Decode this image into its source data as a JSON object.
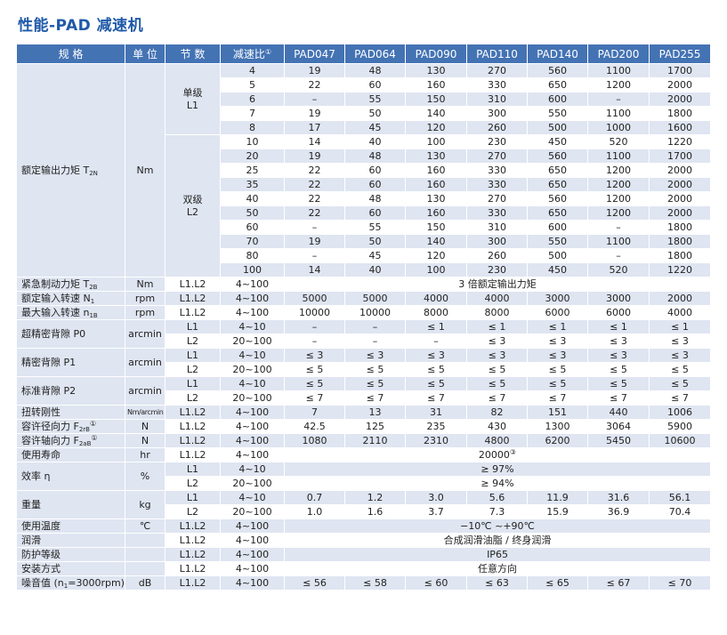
{
  "title": "性能-PAD 减速机",
  "header": {
    "spec": "规 格",
    "unit": "单 位",
    "stage": "节 数",
    "ratio": "减速比",
    "ratio_sup": "①",
    "models": [
      "PAD047",
      "PAD064",
      "PAD090",
      "PAD110",
      "PAD140",
      "PAD200",
      "PAD255"
    ]
  },
  "torque": {
    "label": "额定输出力矩 T",
    "label_sub": "2N",
    "unit": "Nm",
    "single_stage": "单级",
    "single_code": "L1",
    "double_stage": "双级",
    "double_code": "L2",
    "rows": [
      [
        "4",
        "19",
        "48",
        "130",
        "270",
        "560",
        "1100",
        "1700"
      ],
      [
        "5",
        "22",
        "60",
        "160",
        "330",
        "650",
        "1200",
        "2000"
      ],
      [
        "6",
        "–",
        "55",
        "150",
        "310",
        "600",
        "–",
        "2000"
      ],
      [
        "7",
        "19",
        "50",
        "140",
        "300",
        "550",
        "1100",
        "1800"
      ],
      [
        "8",
        "17",
        "45",
        "120",
        "260",
        "500",
        "1000",
        "1600"
      ],
      [
        "10",
        "14",
        "40",
        "100",
        "230",
        "450",
        "520",
        "1220"
      ],
      [
        "20",
        "19",
        "48",
        "130",
        "270",
        "560",
        "1100",
        "1700"
      ],
      [
        "25",
        "22",
        "60",
        "160",
        "330",
        "650",
        "1200",
        "2000"
      ],
      [
        "35",
        "22",
        "60",
        "160",
        "330",
        "650",
        "1200",
        "2000"
      ],
      [
        "40",
        "22",
        "48",
        "130",
        "270",
        "560",
        "1200",
        "2000"
      ],
      [
        "50",
        "22",
        "60",
        "160",
        "330",
        "650",
        "1200",
        "2000"
      ],
      [
        "60",
        "–",
        "55",
        "150",
        "310",
        "600",
        "–",
        "1800"
      ],
      [
        "70",
        "19",
        "50",
        "140",
        "300",
        "550",
        "1100",
        "1800"
      ],
      [
        "80",
        "–",
        "45",
        "120",
        "260",
        "500",
        "–",
        "1800"
      ],
      [
        "100",
        "14",
        "40",
        "100",
        "230",
        "450",
        "520",
        "1220"
      ]
    ]
  },
  "emergency": {
    "label": "紧急制动力矩 T",
    "label_sub": "2B",
    "unit": "Nm",
    "stage": "L1.L2",
    "ratio": "4~100",
    "value": "3 倍额定输出力矩"
  },
  "rated_speed": {
    "label": "额定输入转速 N",
    "label_sub": "1",
    "unit": "rpm",
    "stage": "L1.L2",
    "ratio": "4~100",
    "values": [
      "5000",
      "5000",
      "4000",
      "4000",
      "3000",
      "3000",
      "2000"
    ]
  },
  "max_speed": {
    "label": "最大输入转速 n",
    "label_sub": "1B",
    "unit": "rpm",
    "stage": "L1.L2",
    "ratio": "4~100",
    "values": [
      "10000",
      "10000",
      "8000",
      "8000",
      "6000",
      "6000",
      "4000"
    ]
  },
  "backlash_p0": {
    "label": "超精密背隙 P0",
    "unit": "arcmin",
    "rows": [
      {
        "stage": "L1",
        "ratio": "4~10",
        "values": [
          "–",
          "–",
          "≤ 1",
          "≤ 1",
          "≤ 1",
          "≤ 1",
          "≤ 1"
        ]
      },
      {
        "stage": "L2",
        "ratio": "20~100",
        "values": [
          "–",
          "–",
          "–",
          "≤ 3",
          "≤ 3",
          "≤ 3",
          "≤ 3"
        ]
      }
    ]
  },
  "backlash_p1": {
    "label": "精密背隙 P1",
    "unit": "arcmin",
    "rows": [
      {
        "stage": "L1",
        "ratio": "4~10",
        "values": [
          "≤ 3",
          "≤ 3",
          "≤ 3",
          "≤ 3",
          "≤ 3",
          "≤ 3",
          "≤ 3"
        ]
      },
      {
        "stage": "L2",
        "ratio": "20~100",
        "values": [
          "≤ 5",
          "≤ 5",
          "≤ 5",
          "≤ 5",
          "≤ 5",
          "≤ 5",
          "≤ 5"
        ]
      }
    ]
  },
  "backlash_p2": {
    "label": "标准背隙 P2",
    "unit": "arcmin",
    "rows": [
      {
        "stage": "L1",
        "ratio": "4~10",
        "values": [
          "≤ 5",
          "≤ 5",
          "≤ 5",
          "≤ 5",
          "≤ 5",
          "≤ 5",
          "≤ 5"
        ]
      },
      {
        "stage": "L2",
        "ratio": "20~100",
        "values": [
          "≤ 7",
          "≤ 7",
          "≤ 7",
          "≤ 7",
          "≤ 7",
          "≤ 7",
          "≤ 7"
        ]
      }
    ]
  },
  "stiffness": {
    "label": "扭转刚性",
    "unit": "Nm/arcmin",
    "stage": "L1.L2",
    "ratio": "4~100",
    "values": [
      "7",
      "13",
      "31",
      "82",
      "151",
      "440",
      "1006"
    ]
  },
  "radial_force": {
    "label": "容许径向力 F",
    "label_sub": "2rB",
    "label_sup": "①",
    "unit": "N",
    "stage": "L1.L2",
    "ratio": "4~100",
    "values": [
      "42.5",
      "125",
      "235",
      "430",
      "1300",
      "3064",
      "5900"
    ]
  },
  "axial_force": {
    "label": "容许轴向力 F",
    "label_sub": "2aB",
    "label_sup": "①",
    "unit": "N",
    "stage": "L1.L2",
    "ratio": "4~100",
    "values": [
      "1080",
      "2110",
      "2310",
      "4800",
      "6200",
      "5450",
      "10600"
    ]
  },
  "life": {
    "label": "使用寿命",
    "unit": "hr",
    "stage": "L1.L2",
    "ratio": "4~100",
    "value": "20000",
    "value_sup": "③"
  },
  "efficiency": {
    "label": "效率 η",
    "unit": "%",
    "rows": [
      {
        "stage": "L1",
        "ratio": "4~10",
        "value": "≥ 97%"
      },
      {
        "stage": "L2",
        "ratio": "20~100",
        "value": "≥ 94%"
      }
    ]
  },
  "weight": {
    "label": "重量",
    "unit": "kg",
    "rows": [
      {
        "stage": "L1",
        "ratio": "4~10",
        "values": [
          "0.7",
          "1.2",
          "3.0",
          "5.6",
          "11.9",
          "31.6",
          "56.1"
        ]
      },
      {
        "stage": "L2",
        "ratio": "20~100",
        "values": [
          "1.0",
          "1.6",
          "3.7",
          "7.3",
          "15.9",
          "36.9",
          "70.4"
        ]
      }
    ]
  },
  "temperature": {
    "label": "使用温度",
    "unit": "℃",
    "stage": "L1.L2",
    "ratio": "4~100",
    "value": "−10℃ ~+90℃"
  },
  "lubrication": {
    "label": "润滑",
    "unit": "",
    "stage": "L1.L2",
    "ratio": "4~100",
    "value": "合成润滑油脂 / 终身润滑"
  },
  "protection": {
    "label": "防护等级",
    "unit": "",
    "stage": "L1.L2",
    "ratio": "4~100",
    "value": "IP65"
  },
  "mounting": {
    "label": "安装方式",
    "unit": "",
    "stage": "L1.L2",
    "ratio": "4~100",
    "value": "任意方向"
  },
  "noise": {
    "label": "噪音值 (n",
    "label_sub": "1",
    "label_suffix": "=3000rpm)",
    "unit": "dB",
    "stage": "L1.L2",
    "ratio": "4~100",
    "values": [
      "≤ 56",
      "≤ 58",
      "≤ 60",
      "≤ 63",
      "≤ 65",
      "≤ 67",
      "≤ 70"
    ]
  },
  "colors": {
    "header_bg": "#4473b4",
    "row_bg": "#dfe5f1",
    "title": "#1f5aa8"
  }
}
